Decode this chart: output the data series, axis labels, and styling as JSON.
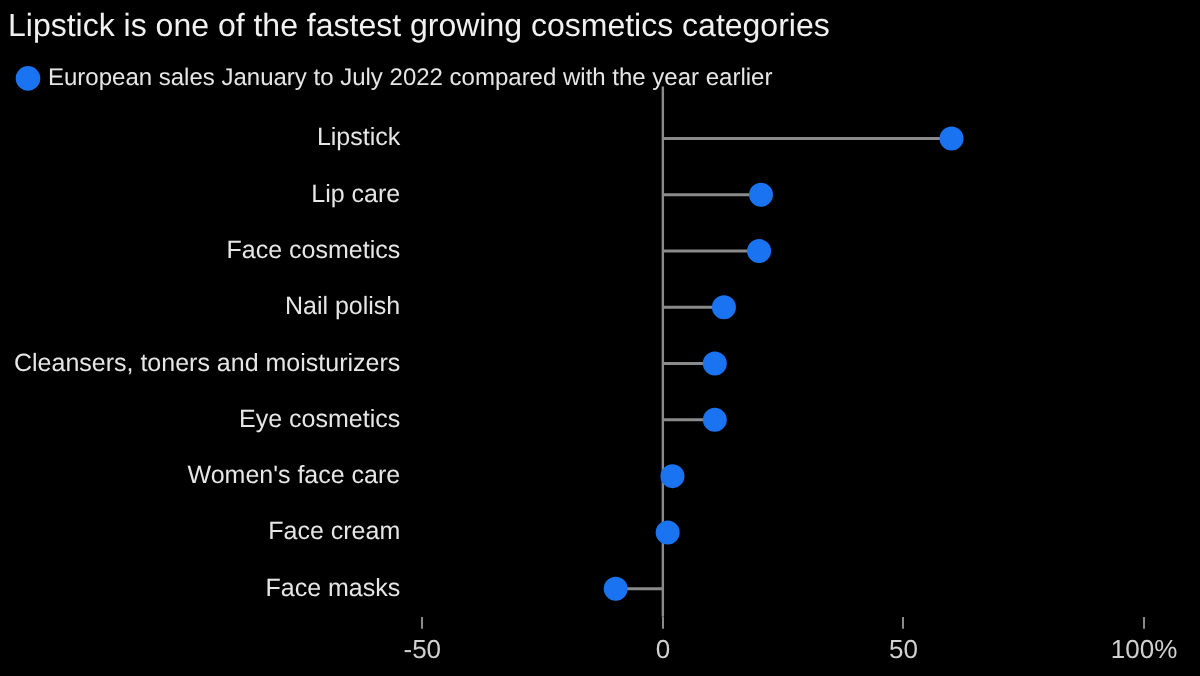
{
  "chart_data": {
    "type": "lollipop",
    "orientation": "horizontal",
    "title": "Lipstick is one of the fastest growing cosmetics categories",
    "categories": [
      "Lipstick",
      "Lip care",
      "Face cosmetics",
      "Nail polish",
      "Cleansers, toners and moisturizers",
      "Eye cosmetics",
      "Women's face care",
      "Face cream",
      "Face masks"
    ],
    "series": [
      {
        "name": "European sales January to July 2022 compared with the year earlier",
        "color": "#1a73f0",
        "values": [
          60,
          20.4,
          20,
          12.7,
          10.8,
          10.8,
          2,
          1,
          -9.8
        ]
      }
    ],
    "xlim": [
      -50,
      100
    ],
    "xticks": [
      -50,
      0,
      50,
      {
        "value": 100,
        "label": "100%"
      }
    ],
    "legend": "top left",
    "marker": "circle"
  }
}
